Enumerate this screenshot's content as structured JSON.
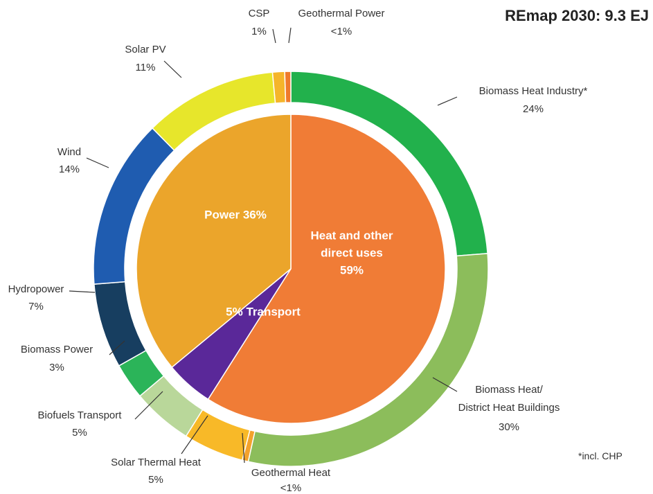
{
  "chart_data": {
    "type": "nested-donut",
    "title": "REmap 2030: 9.3 EJ",
    "footnote": "*incl. CHP",
    "inner": {
      "labels": [
        "Heat and other\ndirect uses\n59%",
        "5% Transport",
        "Power 36%"
      ],
      "values": [
        59,
        5,
        36
      ],
      "colors": [
        "#f07c36",
        "#5a2899",
        "#eba52b"
      ]
    },
    "outer": {
      "categories": [
        "Biomass Heat Industry*",
        "Biomass Heat/\nDistrict Heat Buildings",
        "Geothermal Heat",
        "Solar Thermal Heat",
        "Biofuels Transport",
        "Biomass Power",
        "Hydropower",
        "Wind",
        "Solar PV",
        "CSP",
        "Geothermal Power"
      ],
      "values": [
        24,
        30,
        0.5,
        5,
        5,
        3,
        7,
        14,
        11,
        1,
        0.5
      ],
      "value_labels": [
        "24%",
        "30%",
        "<1%",
        "5%",
        "5%",
        "3%",
        "7%",
        "14%",
        "11%",
        "1%",
        "<1%"
      ],
      "colors": [
        "#22b14c",
        "#8cbd5b",
        "#f3a22c",
        "#f8b928",
        "#b9d79a",
        "#2bb459",
        "#173e60",
        "#1f5cb0",
        "#e7e62b",
        "#f5b52a",
        "#ef7a2b"
      ]
    }
  }
}
